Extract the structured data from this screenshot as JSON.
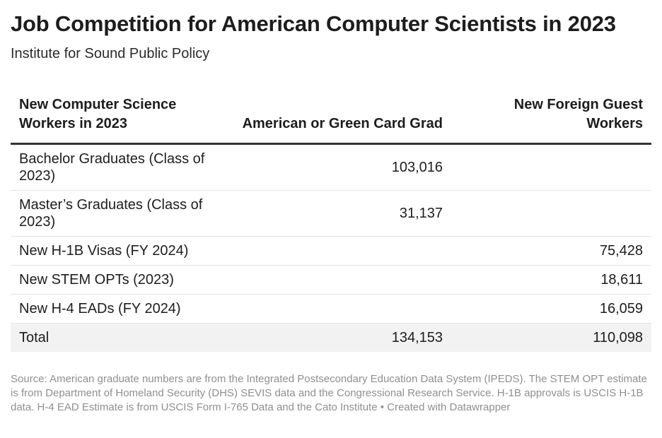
{
  "title": "Job Competition for American Computer Scientists in 2023",
  "subtitle": "Institute for Sound Public Policy",
  "source_note": "Source: American graduate numbers are from the Integrated Postsecondary Education Data System (IPEDS). The STEM OPT estimate is from Department of Homeland Security (DHS) SEVIS data and the Congressional Research Service. H-1B approvals is USCIS H-1B data. H-4 EAD Estimate is from USCIS Form I-765 Data and the Cato Institute • Created with Datawrapper",
  "chart_data": {
    "type": "table",
    "columns": [
      "New Computer Science Workers in 2023",
      "American or Green Card Grad",
      "New Foreign Guest Workers"
    ],
    "rows": [
      {
        "label": "Bachelor Graduates (Class of 2023)",
        "american": "103,016",
        "foreign": ""
      },
      {
        "label": "Master’s Graduates (Class of 2023)",
        "american": "31,137",
        "foreign": ""
      },
      {
        "label": "New H-1B Visas (FY 2024)",
        "american": "",
        "foreign": "75,428"
      },
      {
        "label": "New STEM OPTs (2023)",
        "american": "",
        "foreign": "18,611"
      },
      {
        "label": "New H-4 EADs (FY 2024)",
        "american": "",
        "foreign": "16,059"
      },
      {
        "label": "Total",
        "american": "134,153",
        "foreign": "110,098"
      }
    ]
  }
}
